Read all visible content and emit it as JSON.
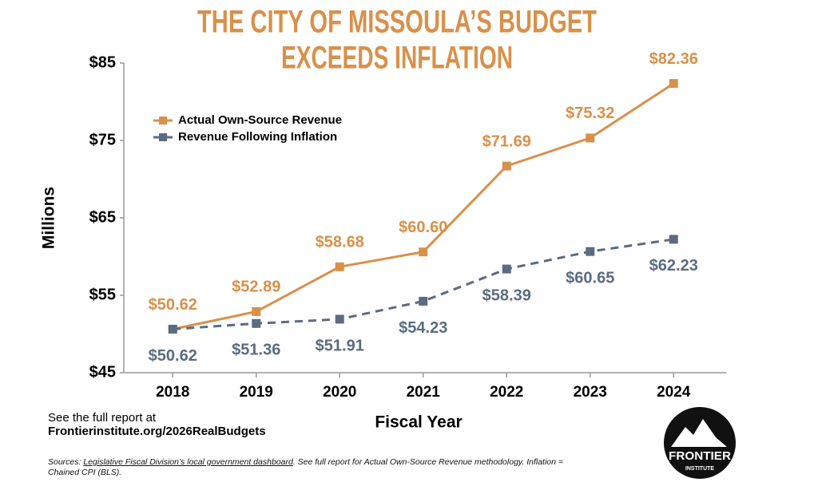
{
  "chart_data": {
    "type": "line",
    "title": [
      "THE CITY OF MISSOULA’S BUDGET",
      "EXCEEDS INFLATION"
    ],
    "y_label": "Millions",
    "x_label": "Fiscal Year",
    "categories": [
      "2018",
      "2019",
      "2020",
      "2021",
      "2022",
      "2023",
      "2024"
    ],
    "series": [
      {
        "name": "Actual Own-Source Revenue",
        "color": "#d9904a",
        "dashed": false,
        "label_side": "above",
        "values": [
          50.62,
          52.89,
          58.68,
          60.6,
          71.69,
          75.32,
          82.36
        ],
        "value_labels": [
          "$50.62",
          "$52.89",
          "$58.68",
          "$60.60",
          "$71.69",
          "$75.32",
          "$82.36"
        ]
      },
      {
        "name": "Revenue Following Inflation",
        "color": "#5b6b82",
        "dashed": true,
        "label_side": "below",
        "values": [
          50.62,
          51.36,
          51.91,
          54.23,
          58.39,
          60.65,
          62.23
        ],
        "value_labels": [
          "$50.62",
          "$51.36",
          "$51.91",
          "$54.23",
          "$58.39",
          "$60.65",
          "$62.23"
        ]
      }
    ],
    "ylim": [
      45,
      85
    ],
    "yticks": [
      {
        "value": 45,
        "label": "$45"
      },
      {
        "value": 55,
        "label": "$55"
      },
      {
        "value": 65,
        "label": "$65"
      },
      {
        "value": 75,
        "label": "$75"
      },
      {
        "value": 85,
        "label": "$85"
      }
    ],
    "grid": false,
    "legend": "upper left"
  },
  "footer": {
    "report_lines": [
      "See the full report at",
      "Frontierinstitute.org/2026RealBudgets"
    ],
    "sources_prefix": "Sources: ",
    "sources_link": "Legislative Fiscal Division’s local government dashboard",
    "sources_rest": ". See full report for Actual Own-Source Revenue methodology. Inflation = Chained CPI (BLS)."
  },
  "logo": {
    "name": "FRONTIER",
    "subtitle": "INSTITUTE"
  }
}
